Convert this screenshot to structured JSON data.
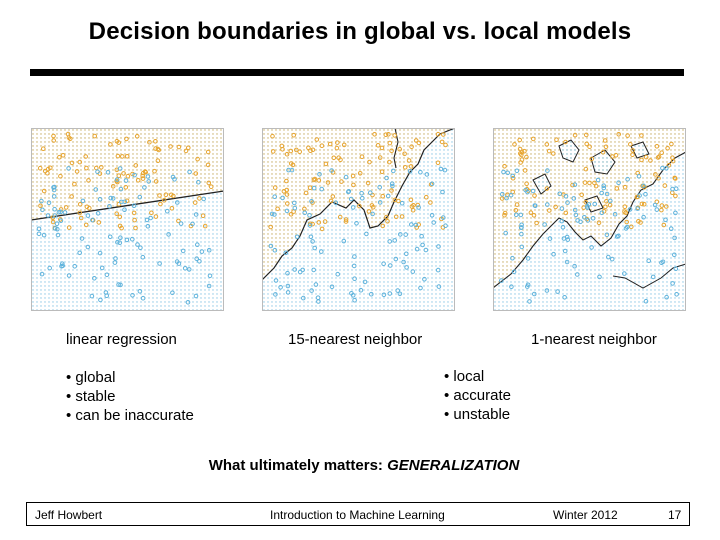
{
  "slide": {
    "title": "Decision boundaries in global vs. local models",
    "plots": [
      {
        "caption": "linear regression"
      },
      {
        "caption": "15-nearest neighbor"
      },
      {
        "caption": "1-nearest neighbor"
      }
    ],
    "left_bullets": [
      "• global",
      "• stable",
      "• can be inaccurate"
    ],
    "right_bullets": [
      "• local",
      "• accurate",
      "• unstable"
    ],
    "tagline_prefix": "What ultimately matters: ",
    "tagline_emphasis": "GENERALIZATION",
    "footer": {
      "author": "Jeff Howbert",
      "course": "Introduction to Machine Learning",
      "term": "Winter 2012",
      "page": "17"
    },
    "colors": {
      "class_orange": "#e7a52f",
      "class_blue": "#5fb3dc",
      "region_orange": "#f4dca6",
      "region_blue": "#b9def0"
    }
  }
}
